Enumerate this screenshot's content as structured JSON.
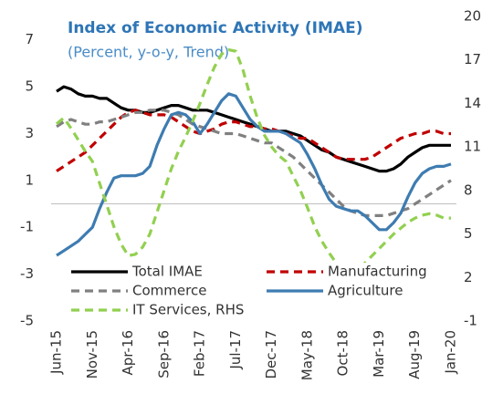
{
  "chart_data": {
    "type": "line",
    "title": "Index of Economic Activity (IMAE)",
    "subtitle": "(Percent, y-o-y, Trend)",
    "categories": [
      "Jun-15",
      null,
      null,
      null,
      null,
      "Nov-15",
      null,
      null,
      null,
      null,
      "Apr-16",
      null,
      null,
      null,
      null,
      "Sep-16",
      null,
      null,
      null,
      null,
      "Feb-17",
      null,
      null,
      null,
      null,
      "Jul-17",
      null,
      null,
      null,
      null,
      "Dec-17",
      null,
      null,
      null,
      null,
      "May-18",
      null,
      null,
      null,
      null,
      "Oct-18",
      null,
      null,
      null,
      null,
      "Mar-19",
      null,
      null,
      null,
      null,
      "Aug-19",
      null,
      null,
      null,
      null,
      "Jan-20"
    ],
    "ylim": [
      -5,
      8
    ],
    "yticks": [
      -5,
      -3,
      -1,
      1,
      3,
      5,
      7
    ],
    "y2lim": [
      -1,
      20
    ],
    "y2ticks": [
      -1,
      2,
      5,
      8,
      11,
      14,
      17,
      20
    ],
    "series": [
      {
        "name": "Total IMAE",
        "color": "#000000",
        "dash": false,
        "values": [
          4.8,
          5.0,
          4.9,
          4.7,
          4.6,
          4.6,
          4.5,
          4.5,
          4.3,
          4.1,
          4.0,
          4.0,
          3.9,
          3.9,
          4.0,
          4.1,
          4.2,
          4.2,
          4.1,
          4.0,
          4.0,
          4.0,
          3.9,
          3.8,
          3.7,
          3.6,
          3.5,
          3.4,
          3.3,
          3.2,
          3.1,
          3.1,
          3.1,
          3.0,
          2.9,
          2.7,
          2.5,
          2.3,
          2.2,
          2.0,
          1.9,
          1.8,
          1.7,
          1.6,
          1.5,
          1.4,
          1.4,
          1.5,
          1.7,
          2.0,
          2.2,
          2.4,
          2.5,
          2.5,
          2.5,
          2.5
        ]
      },
      {
        "name": "Manufacturing",
        "color": "#c00000",
        "dash": true,
        "values": [
          1.4,
          1.6,
          1.8,
          2.0,
          2.2,
          2.5,
          2.8,
          3.1,
          3.4,
          3.7,
          3.9,
          4.0,
          3.9,
          3.8,
          3.8,
          3.8,
          3.7,
          3.5,
          3.3,
          3.1,
          3.0,
          3.1,
          3.2,
          3.4,
          3.5,
          3.5,
          3.4,
          3.3,
          3.3,
          3.2,
          3.2,
          3.1,
          3.0,
          2.9,
          2.8,
          2.8,
          2.6,
          2.4,
          2.2,
          2.0,
          1.9,
          1.9,
          1.9,
          1.9,
          2.0,
          2.2,
          2.4,
          2.6,
          2.8,
          2.9,
          3.0,
          3.0,
          3.1,
          3.1,
          3.0,
          3.0
        ]
      },
      {
        "name": "Commerce",
        "color": "#808080",
        "dash": true,
        "values": [
          3.3,
          3.5,
          3.6,
          3.5,
          3.4,
          3.4,
          3.5,
          3.5,
          3.6,
          3.7,
          3.8,
          3.9,
          3.9,
          4.0,
          4.0,
          4.0,
          3.9,
          3.8,
          3.6,
          3.4,
          3.3,
          3.2,
          3.1,
          3.0,
          3.0,
          3.0,
          2.9,
          2.8,
          2.7,
          2.6,
          2.6,
          2.4,
          2.2,
          2.0,
          1.7,
          1.4,
          1.1,
          0.8,
          0.5,
          0.2,
          -0.1,
          -0.3,
          -0.4,
          -0.5,
          -0.5,
          -0.5,
          -0.5,
          -0.4,
          -0.3,
          -0.2,
          0.0,
          0.2,
          0.4,
          0.6,
          0.8,
          1.0
        ]
      },
      {
        "name": "Agriculture",
        "color": "#3e7cb1",
        "dash": false,
        "values": [
          -2.2,
          -2.0,
          -1.8,
          -1.6,
          -1.3,
          -1.0,
          -0.2,
          0.5,
          1.1,
          1.2,
          1.2,
          1.2,
          1.3,
          1.6,
          2.5,
          3.2,
          3.8,
          3.9,
          3.8,
          3.5,
          3.0,
          3.4,
          3.9,
          4.4,
          4.7,
          4.6,
          4.1,
          3.6,
          3.3,
          3.1,
          3.1,
          3.1,
          3.0,
          2.8,
          2.6,
          2.1,
          1.5,
          0.8,
          0.2,
          -0.1,
          -0.2,
          -0.3,
          -0.3,
          -0.5,
          -0.8,
          -1.1,
          -1.1,
          -0.8,
          -0.4,
          0.3,
          0.9,
          1.3,
          1.5,
          1.6,
          1.6,
          1.7
        ]
      },
      {
        "name": "IT Services, RHS",
        "color": "#92d050",
        "dash": true,
        "axis": "y2",
        "values": [
          12.6,
          13.0,
          12.3,
          11.5,
          10.7,
          10.0,
          8.5,
          7.0,
          5.5,
          4.3,
          3.5,
          3.6,
          4.1,
          5.0,
          6.5,
          8.0,
          9.5,
          10.7,
          11.7,
          12.8,
          14.0,
          15.3,
          16.5,
          17.4,
          17.7,
          17.6,
          16.3,
          14.5,
          13.0,
          11.8,
          11.0,
          10.4,
          10.0,
          9.0,
          8.0,
          6.8,
          5.5,
          4.5,
          3.7,
          3.0,
          2.5,
          2.3,
          2.5,
          3.0,
          3.5,
          4.0,
          4.5,
          5.0,
          5.4,
          5.8,
          6.1,
          6.3,
          6.4,
          6.3,
          6.1,
          6.1
        ]
      }
    ]
  }
}
